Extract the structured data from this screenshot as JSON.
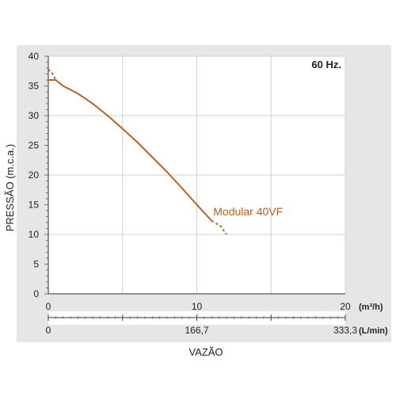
{
  "chart_data": {
    "type": "line",
    "title": "",
    "annotation": "60 Hz.",
    "xlabel": "VAZÃO",
    "ylabel": "PRESSÃO (m.c.a.)",
    "xlim": [
      0,
      20
    ],
    "ylim": [
      0,
      40
    ],
    "x_unit": "(m³/h)",
    "x2_unit": "(L/min)",
    "y_ticks": [
      "0",
      "5",
      "10",
      "15",
      "20",
      "25",
      "30",
      "35",
      "40"
    ],
    "x_ticks": [
      "0",
      "10",
      "20"
    ],
    "x2_ticks": [
      "0",
      "166,7",
      "333,3"
    ],
    "grid": true,
    "series": [
      {
        "name": "Modular 40VF",
        "color": "#c0601a",
        "x": [
          0.0,
          0.5,
          1.0,
          2.0,
          3.0,
          4.0,
          5.0,
          6.0,
          7.0,
          8.0,
          9.0,
          10.0,
          11.0
        ],
        "y": [
          36.0,
          36.0,
          35.0,
          33.7,
          32.0,
          30.0,
          27.8,
          25.5,
          23.0,
          20.5,
          17.8,
          15.0,
          12.3
        ],
        "ext_start": {
          "x": [
            0.0,
            0.3,
            0.5
          ],
          "y": [
            37.8,
            37.0,
            36.0
          ]
        },
        "ext_end": {
          "x": [
            11.0,
            11.6,
            12.0
          ],
          "y": [
            12.3,
            11.4,
            10.0
          ]
        }
      }
    ]
  }
}
